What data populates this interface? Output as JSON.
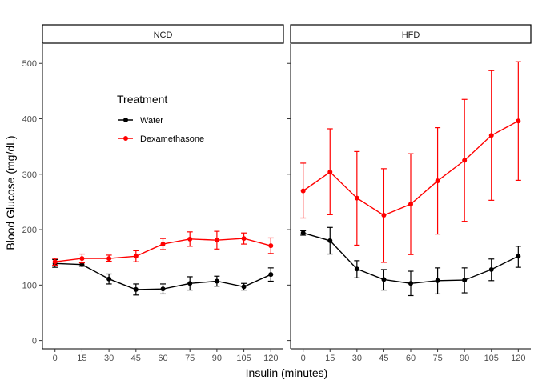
{
  "chart_data": {
    "type": "line",
    "xlabel": "Insulin (minutes)",
    "ylabel": "Blood Glucose (mg/dL)",
    "x": [
      0,
      15,
      30,
      45,
      60,
      75,
      90,
      105,
      120
    ],
    "x_ticks": [
      "0",
      "15",
      "30",
      "45",
      "60",
      "75",
      "90",
      "105",
      "120"
    ],
    "y_ticks": [
      "0",
      "100",
      "200",
      "300",
      "400",
      "500"
    ],
    "xlim": [
      -7,
      127
    ],
    "ylim": [
      -15,
      535
    ],
    "grid": false,
    "legend": {
      "title": "Treatment",
      "placement": "inside-left-panel-upper",
      "entries": [
        "Water",
        "Dexamethasone"
      ]
    },
    "panels": [
      {
        "label": "NCD",
        "series": [
          {
            "name": "Water",
            "color": "#000000",
            "values": [
              139,
              137,
              111,
              92,
              93,
              103,
              107,
              97,
              119
            ],
            "err_low": [
              132,
              134,
              102,
              82,
              84,
              91,
              98,
              91,
              107
            ],
            "err_high": [
              146,
              141,
              120,
              102,
              102,
              115,
              116,
              103,
              131
            ]
          },
          {
            "name": "Dexamethasone",
            "color": "#ff0000",
            "values": [
              142,
              148,
              148,
              152,
              174,
              183,
              181,
              184,
              171
            ],
            "err_low": [
              136,
              140,
              143,
              142,
              164,
              170,
              165,
              174,
              157
            ],
            "err_high": [
              148,
              156,
              154,
              162,
              184,
              196,
              197,
              194,
              185
            ]
          }
        ]
      },
      {
        "label": "HFD",
        "series": [
          {
            "name": "Water",
            "color": "#000000",
            "values": [
              194,
              180,
              129,
              110,
              103,
              108,
              109,
              128,
              152
            ],
            "err_low": [
              190,
              156,
              113,
              91,
              81,
              84,
              86,
              108,
              132
            ],
            "err_high": [
              198,
              204,
              144,
              128,
              125,
              131,
              131,
              147,
              170
            ]
          },
          {
            "name": "Dexamethasone",
            "color": "#ff0000",
            "values": [
              270,
              304,
              257,
              226,
              246,
              288,
              325,
              370,
              396
            ],
            "err_low": [
              221,
              227,
              172,
              141,
              155,
              192,
              215,
              253,
              289
            ],
            "err_high": [
              320,
              382,
              341,
              310,
              337,
              384,
              435,
              487,
              503
            ]
          }
        ]
      }
    ]
  }
}
